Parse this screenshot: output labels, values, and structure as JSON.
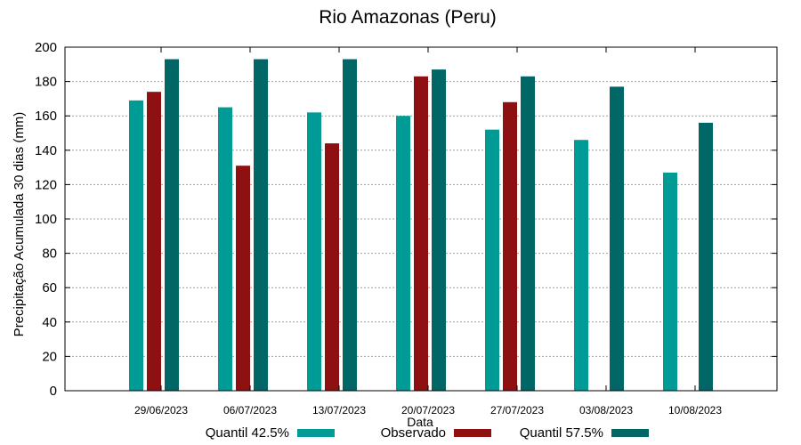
{
  "chart_data": {
    "type": "bar",
    "title": "Rio Amazonas (Peru)",
    "xlabel": "Data",
    "ylabel": "Precipitação Acumulada 30 dias (mm)",
    "ylim": [
      0,
      200
    ],
    "yticks": [
      0,
      20,
      40,
      60,
      80,
      100,
      120,
      140,
      160,
      180,
      200
    ],
    "grid": true,
    "legend_position": "bottom",
    "categories": [
      "29/06/2023",
      "06/07/2023",
      "13/07/2023",
      "20/07/2023",
      "27/07/2023",
      "03/08/2023",
      "10/08/2023"
    ],
    "series": [
      {
        "name": "Quantil 42.5%",
        "color": "#009b95",
        "values": [
          169,
          165,
          162,
          160,
          152,
          146,
          127
        ]
      },
      {
        "name": "Observado",
        "color": "#8f1010",
        "values": [
          174,
          131,
          144,
          183,
          168,
          null,
          null
        ]
      },
      {
        "name": "Quantil 57.5%",
        "color": "#006766",
        "values": [
          193,
          193,
          193,
          187,
          183,
          177,
          156
        ]
      }
    ]
  }
}
